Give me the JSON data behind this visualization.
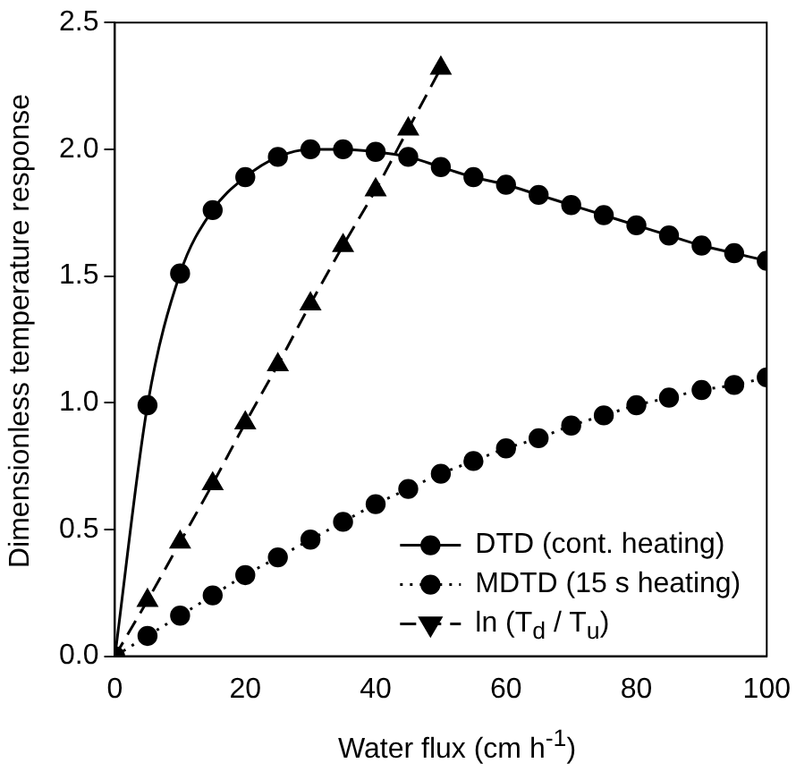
{
  "chart_data": {
    "type": "line",
    "xlabel": "Water flux (cm h$^{-1}$)",
    "ylabel": "Dimensionless temperature response",
    "xlim": [
      0,
      100
    ],
    "xticks": [
      0,
      20,
      40,
      60,
      80,
      100
    ],
    "ylim": [
      0,
      2.5
    ],
    "yticks": [
      {
        "value": 0,
        "label": "0.0"
      },
      {
        "value": 0.5,
        "label": "0.5"
      },
      {
        "value": 1,
        "label": "1.0"
      },
      {
        "value": 1.5,
        "label": "1.5"
      },
      {
        "value": 2,
        "label": "2.0"
      },
      {
        "value": 2.5,
        "label": "2.5"
      }
    ],
    "grid": false,
    "legend": "bottom right",
    "series": [
      {
        "name": "DTD (cont. heating)",
        "color": "#000000",
        "marker": "circle",
        "line_style": "solid",
        "x": [
          0,
          5,
          10,
          15,
          20,
          25,
          30,
          35,
          40,
          45,
          50,
          55,
          60,
          65,
          70,
          75,
          80,
          85,
          90,
          95,
          100
        ],
        "values": [
          0,
          0.99,
          1.51,
          1.76,
          1.89,
          1.97,
          2.0,
          2.0,
          1.99,
          1.97,
          1.93,
          1.89,
          1.86,
          1.82,
          1.78,
          1.74,
          1.7,
          1.66,
          1.62,
          1.59,
          1.56
        ]
      },
      {
        "name": "MDTD (15 s heating)",
        "color": "#000000",
        "marker": "circle",
        "line_style": "dotted",
        "x": [
          0,
          5,
          10,
          15,
          20,
          25,
          30,
          35,
          40,
          45,
          50,
          55,
          60,
          65,
          70,
          75,
          80,
          85,
          90,
          95,
          100
        ],
        "values": [
          0,
          0.08,
          0.16,
          0.24,
          0.32,
          0.39,
          0.46,
          0.53,
          0.6,
          0.66,
          0.72,
          0.77,
          0.82,
          0.86,
          0.91,
          0.95,
          0.99,
          1.02,
          1.05,
          1.07,
          1.1
        ]
      },
      {
        "name": "ln (T$_{d}$ / T$_{u}$)",
        "color": "#000000",
        "marker": "triangle",
        "line_style": "dashed",
        "x": [
          0,
          5,
          10,
          15,
          20,
          25,
          30,
          35,
          40,
          45,
          50
        ],
        "values": [
          0,
          0.22,
          0.45,
          0.68,
          0.92,
          1.15,
          1.39,
          1.62,
          1.84,
          2.08,
          2.32
        ]
      }
    ]
  }
}
